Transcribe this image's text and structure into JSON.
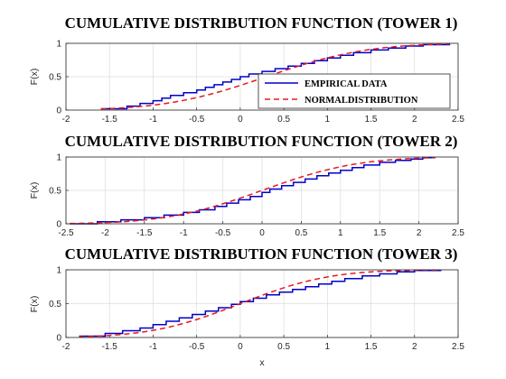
{
  "chart_data": [
    {
      "type": "line",
      "title": "CUMULATIVE DISTRIBUTION FUNCTION (TOWER 1)",
      "xlabel": "",
      "ylabel": "F(x)",
      "xlim": [
        -2,
        2.5
      ],
      "ylim": [
        0,
        1
      ],
      "xticks": [
        "-2",
        "-1.5",
        "-1",
        "-0.5",
        "0",
        "0.5",
        "1",
        "1.5",
        "2",
        "2.5"
      ],
      "yticks": [
        "0",
        "0.5",
        "1"
      ],
      "grid": true,
      "legend": {
        "placement": "bottom-right",
        "entries": [
          {
            "label": "EMPIRICAL DATA",
            "style": "solid",
            "color": "#0000cc"
          },
          {
            "label": "NORMALDISTRIBUTION",
            "style": "dashed",
            "color": "#e8191f"
          }
        ]
      },
      "series": [
        {
          "name": "EMPIRICAL DATA",
          "kind": "step",
          "color": "#0000cc",
          "x": [
            -1.6,
            -1.3,
            -1.15,
            -1.0,
            -0.9,
            -0.8,
            -0.65,
            -0.5,
            -0.4,
            -0.3,
            -0.2,
            -0.1,
            0.0,
            0.1,
            0.25,
            0.4,
            0.55,
            0.7,
            0.85,
            1.0,
            1.15,
            1.3,
            1.5,
            1.7,
            1.9,
            2.1,
            2.4
          ],
          "y": [
            0.02,
            0.06,
            0.1,
            0.14,
            0.18,
            0.22,
            0.26,
            0.3,
            0.34,
            0.38,
            0.42,
            0.46,
            0.5,
            0.54,
            0.58,
            0.62,
            0.66,
            0.7,
            0.74,
            0.78,
            0.82,
            0.86,
            0.9,
            0.93,
            0.96,
            0.98,
            1.0
          ]
        },
        {
          "name": "NORMALDISTRIBUTION",
          "kind": "normal_cdf",
          "color": "#e8191f",
          "mu": 0.3,
          "sigma": 0.9,
          "x_range": [
            -1.6,
            2.4
          ]
        }
      ]
    },
    {
      "type": "line",
      "title": "CUMULATIVE DISTRIBUTION FUNCTION (TOWER 2)",
      "xlabel": "",
      "ylabel": "F(x)",
      "xlim": [
        -2.5,
        2.5
      ],
      "ylim": [
        0,
        1
      ],
      "xticks": [
        "-2.5",
        "-2",
        "-1.5",
        "-1",
        "-0.5",
        "0",
        "0.5",
        "1",
        "1.5",
        "2",
        "2.5"
      ],
      "yticks": [
        "0",
        "0.5",
        "1"
      ],
      "grid": true,
      "series": [
        {
          "name": "",
          "kind": "step",
          "color": "#0000cc",
          "x": [
            -2.45,
            -2.1,
            -1.8,
            -1.5,
            -1.25,
            -1.0,
            -0.8,
            -0.6,
            -0.45,
            -0.3,
            -0.15,
            0.0,
            0.1,
            0.25,
            0.4,
            0.55,
            0.7,
            0.85,
            1.0,
            1.15,
            1.3,
            1.5,
            1.7,
            1.9,
            2.05,
            2.2
          ],
          "y": [
            0.0,
            0.03,
            0.06,
            0.09,
            0.13,
            0.17,
            0.21,
            0.26,
            0.31,
            0.36,
            0.41,
            0.47,
            0.52,
            0.57,
            0.62,
            0.67,
            0.72,
            0.76,
            0.8,
            0.84,
            0.88,
            0.92,
            0.95,
            0.97,
            0.99,
            1.0
          ]
        },
        {
          "name": "",
          "kind": "normal_cdf",
          "color": "#e8191f",
          "mu": 0.0,
          "sigma": 0.95,
          "x_range": [
            -2.45,
            2.2
          ]
        }
      ]
    },
    {
      "type": "line",
      "title": "CUMULATIVE DISTRIBUTION FUNCTION (TOWER 3)",
      "xlabel": "x",
      "ylabel": "F(x)",
      "xlim": [
        -2,
        2.5
      ],
      "ylim": [
        0,
        1
      ],
      "xticks": [
        "-2",
        "-1.5",
        "-1",
        "-0.5",
        "0",
        "0.5",
        "1",
        "1.5",
        "2",
        "2.5"
      ],
      "yticks": [
        "0",
        "0.5",
        "1"
      ],
      "grid": true,
      "series": [
        {
          "name": "",
          "kind": "step",
          "color": "#0000cc",
          "x": [
            -1.85,
            -1.55,
            -1.35,
            -1.15,
            -1.0,
            -0.85,
            -0.7,
            -0.55,
            -0.4,
            -0.25,
            -0.1,
            0.0,
            0.15,
            0.3,
            0.45,
            0.6,
            0.75,
            0.9,
            1.05,
            1.2,
            1.4,
            1.6,
            1.8,
            2.0,
            2.3
          ],
          "y": [
            0.02,
            0.06,
            0.1,
            0.14,
            0.19,
            0.24,
            0.29,
            0.34,
            0.39,
            0.44,
            0.49,
            0.53,
            0.58,
            0.63,
            0.67,
            0.71,
            0.75,
            0.79,
            0.83,
            0.87,
            0.91,
            0.94,
            0.97,
            0.99,
            1.0
          ]
        },
        {
          "name": "",
          "kind": "normal_cdf",
          "color": "#e8191f",
          "mu": 0.0,
          "sigma": 0.8,
          "x_range": [
            -1.85,
            2.3
          ]
        }
      ]
    }
  ]
}
